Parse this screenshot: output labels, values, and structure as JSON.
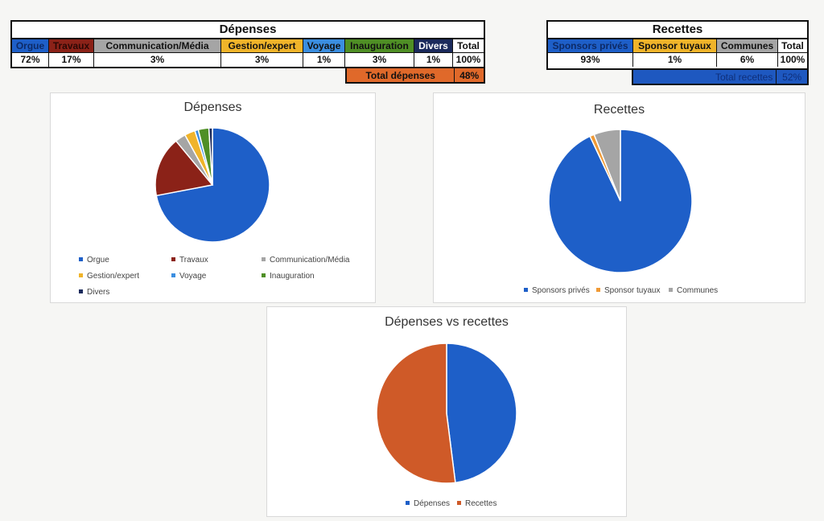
{
  "colors": {
    "orgue": "#1e5fc8",
    "travaux": "#8b2218",
    "communication": "#a5a5a5",
    "gestion": "#f0b42a",
    "voyage": "#3b8ee0",
    "inauguration": "#4f8f25",
    "divers": "#1b2a5c",
    "sponsors": "#1e5fc8",
    "tuyaux": "#f09a36",
    "communes": "#a5a5a5",
    "depenses": "#1e5fc8",
    "recettes": "#cf5a28",
    "total_dep_fill": "#e0692a",
    "total_rec_fill": "#1e58c0"
  },
  "depenses_table": {
    "title": "Dépenses",
    "headers": [
      "Orgue",
      "Travaux",
      "Communication/Média",
      "Gestion/expert",
      "Voyage",
      "Inauguration",
      "Divers",
      "Total"
    ],
    "values": [
      "72%",
      "17%",
      "3%",
      "3%",
      "1%",
      "3%",
      "1%",
      "100%"
    ],
    "total_label": "Total dépenses",
    "total_value": "48%"
  },
  "recettes_table": {
    "title": "Recettes",
    "headers": [
      "Sponsors privés",
      "Sponsor tuyaux",
      "Communes",
      "Total"
    ],
    "values": [
      "93%",
      "1%",
      "6%",
      "100%"
    ],
    "total_label": "Total recettes",
    "total_value": "52%"
  },
  "chart_data": [
    {
      "type": "pie",
      "title": "Dépenses",
      "categories": [
        "Orgue",
        "Travaux",
        "Communication/Média",
        "Gestion/expert",
        "Voyage",
        "Inauguration",
        "Divers"
      ],
      "values": [
        72,
        17,
        3,
        3,
        1,
        3,
        1
      ],
      "legend_position": "bottom"
    },
    {
      "type": "pie",
      "title": "Recettes",
      "categories": [
        "Sponsors privés",
        "Sponsor tuyaux",
        "Communes"
      ],
      "values": [
        93,
        1,
        6
      ],
      "legend_position": "bottom"
    },
    {
      "type": "pie",
      "title": "Dépenses vs recettes",
      "categories": [
        "Dépenses",
        "Recettes"
      ],
      "values": [
        48,
        52
      ],
      "legend_position": "bottom"
    }
  ]
}
